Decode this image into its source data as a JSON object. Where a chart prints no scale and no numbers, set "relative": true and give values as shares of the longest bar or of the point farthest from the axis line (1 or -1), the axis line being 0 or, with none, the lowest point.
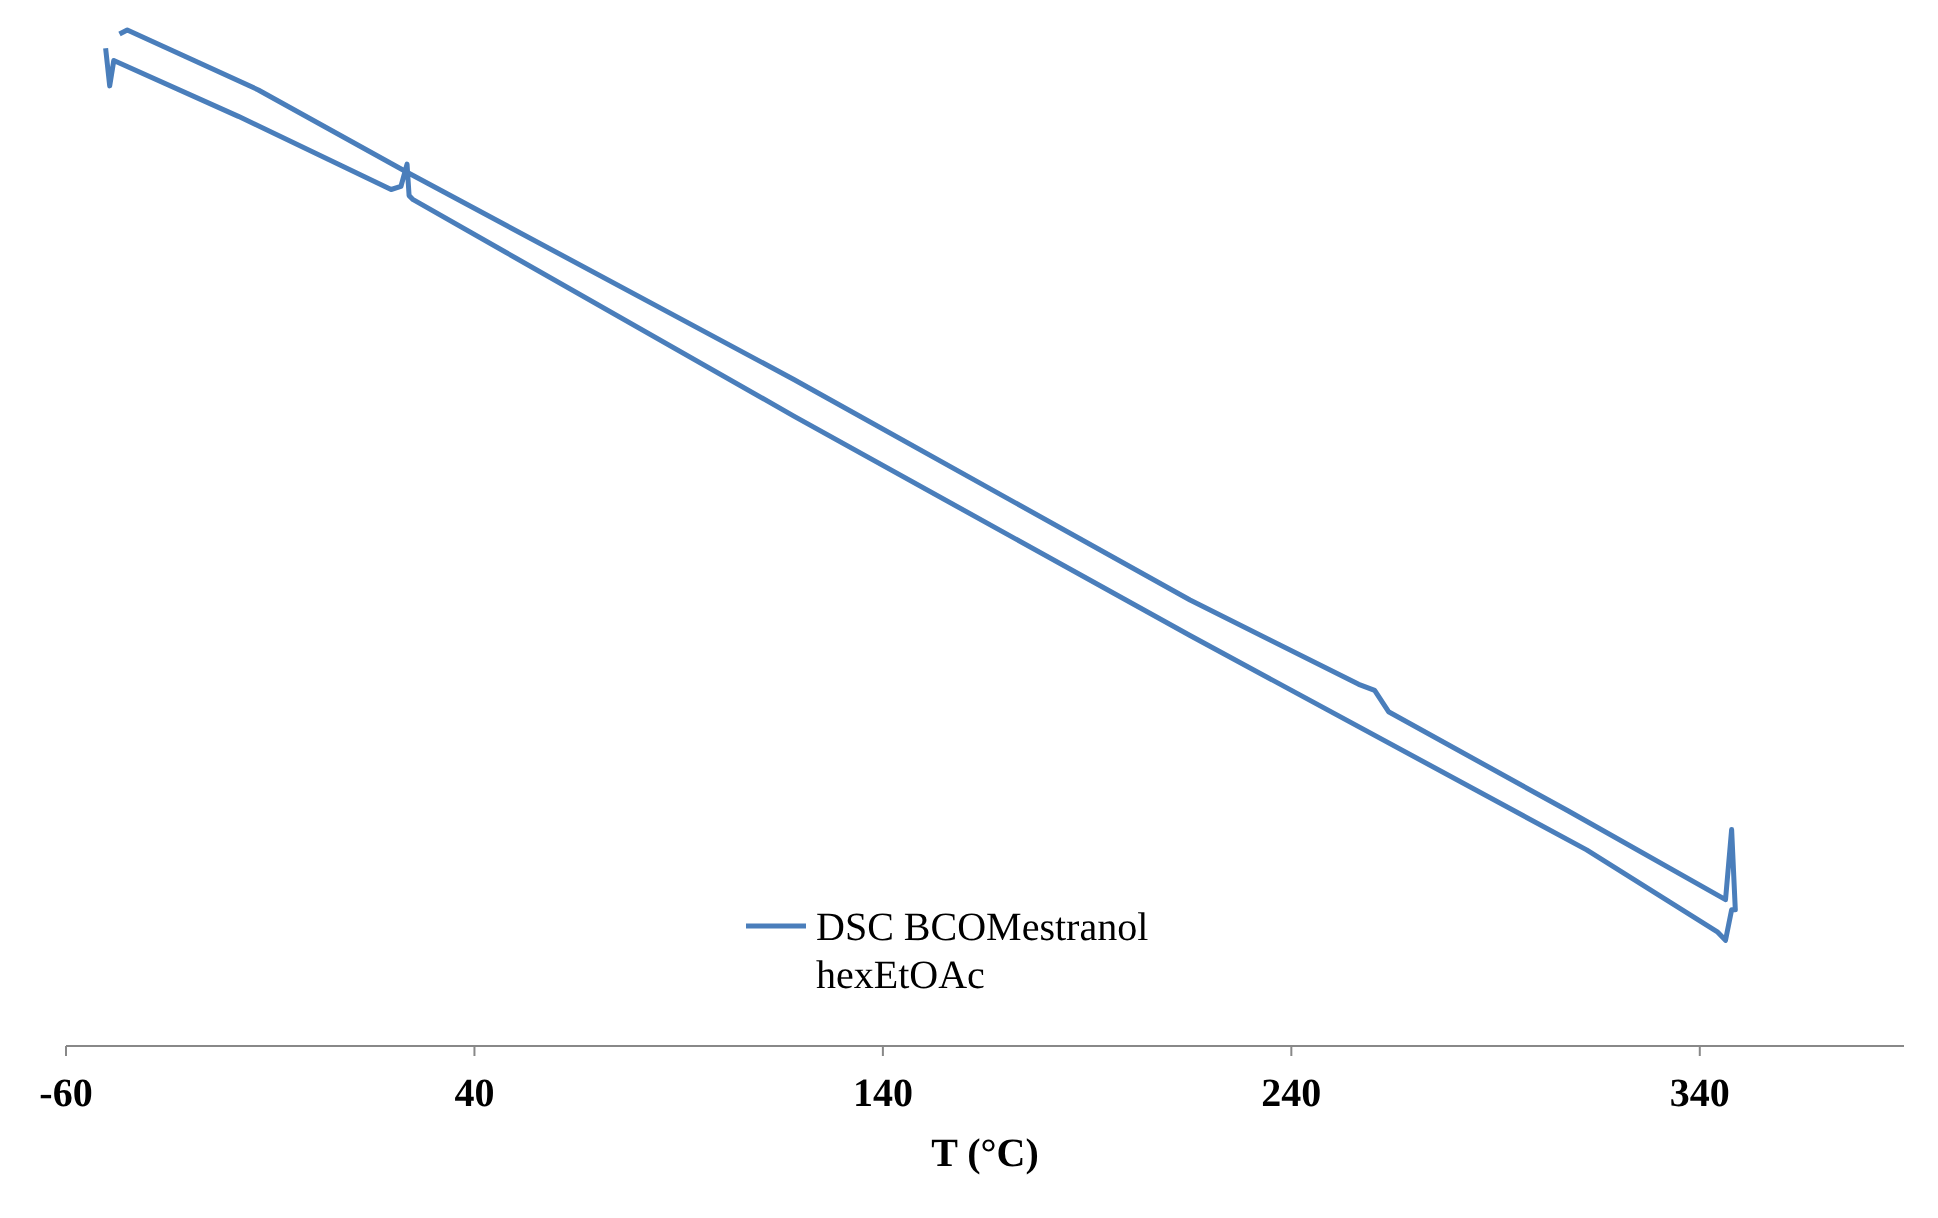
{
  "chart_data": {
    "type": "line",
    "relative": true,
    "xlabel": "T (°C)",
    "xlim": [
      -60,
      390
    ],
    "xticks": [
      -60,
      40,
      140,
      240,
      340
    ],
    "legend": "bottom",
    "series": [
      {
        "name": "DSC BCOMestranol hexEtOAc",
        "color": "#4a7ebb",
        "x": [
          -50.3,
          -49.3,
          -48.3,
          -17.8,
          19.6,
          22,
          23.5,
          24,
          25,
          118.2,
          215.2,
          312.3,
          344.4,
          346.3,
          347.8,
          348.7,
          347.8,
          346.3,
          307.5,
          263.8,
          260.4,
          256.5,
          215.2,
          118.2,
          23.5,
          -12.9,
          -45,
          -46.9
        ],
        "values": [
          0.982,
          0.945,
          0.97,
          0.915,
          0.843,
          0.846,
          0.868,
          0.837,
          0.833,
          0.62,
          0.404,
          0.193,
          0.112,
          0.104,
          0.134,
          0.134,
          0.213,
          0.144,
          0.232,
          0.329,
          0.35,
          0.356,
          0.439,
          0.656,
          0.86,
          0.941,
          1,
          0.996
        ]
      }
    ]
  }
}
